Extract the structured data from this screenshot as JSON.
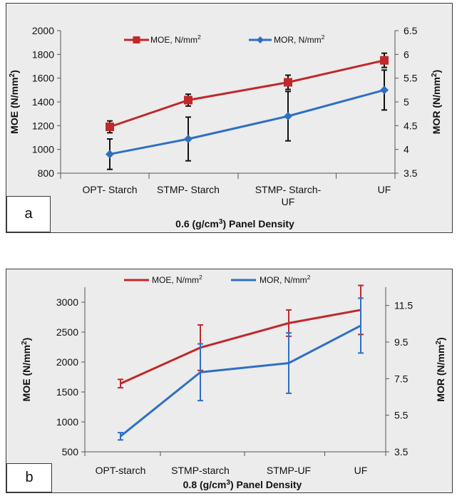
{
  "panels": {
    "a": {
      "label": "a"
    },
    "b": {
      "label": "b"
    }
  },
  "chart_data": [
    {
      "type": "line",
      "categories": [
        "OPT- Starch",
        "STMP- Starch",
        "STMP- Starch-UF",
        "UF"
      ],
      "category_lines": [
        [
          "OPT- Starch"
        ],
        [
          "STMP- Starch"
        ],
        [
          "STMP- Starch-",
          "UF"
        ],
        [
          "UF"
        ]
      ],
      "ylabel": "MOE (N/mm2)",
      "ylabel_parts": {
        "main": "MOE (N/mm",
        "sup": "2",
        "close": ")"
      },
      "y2label": "MOR (N/mm2)",
      "y2label_parts": {
        "main": "MOR (N/mm",
        "sup": "2",
        "close": ")"
      },
      "xlabel": "0.6 (g/cm3)  Panel Density",
      "xlabel_parts": {
        "pre": "0.6 (g/cm",
        "sup": "3",
        "post": ")  Panel Density"
      },
      "ylim": [
        800,
        2000
      ],
      "yticks": [
        800,
        1000,
        1200,
        1400,
        1600,
        1800,
        2000
      ],
      "y2lim": [
        3.5,
        6.5
      ],
      "y2ticks": [
        "3.5",
        "4",
        "4.5",
        "5",
        "5.5",
        "6",
        "6.5"
      ],
      "grid": false,
      "legend": "top",
      "series": [
        {
          "name": "MOE, N/mm2",
          "name_parts": {
            "main": "MOE, N/mm",
            "sup": "2"
          },
          "axis": "left",
          "color": "#c0282a",
          "marker": "square",
          "values": [
            1190,
            1415,
            1565,
            1750
          ],
          "err": [
            50,
            50,
            60,
            60
          ]
        },
        {
          "name": "MOR, N/mm2",
          "name_parts": {
            "main": "MOR, N/mm",
            "sup": "2"
          },
          "axis": "right",
          "color": "#2e6fc4",
          "marker": "diamond",
          "values": [
            3.9,
            4.22,
            4.7,
            5.25
          ],
          "err": [
            0.32,
            0.46,
            0.52,
            0.42
          ]
        }
      ]
    },
    {
      "type": "line",
      "categories": [
        "OPT-starch",
        "STMP-starch",
        "STMP-UF",
        "UF"
      ],
      "category_lines": [
        [
          "OPT-starch"
        ],
        [
          "STMP-starch"
        ],
        [
          "STMP-UF"
        ],
        [
          "UF"
        ]
      ],
      "ylabel": "MOE (N/mm2)",
      "ylabel_parts": {
        "main": "MOE (N/mm",
        "sup": "2",
        "close": ")"
      },
      "y2label": "MOR (N/mm2)",
      "y2label_parts": {
        "main": "MOR (N/mm",
        "sup": "2",
        "close": ")"
      },
      "xlabel": "0.8 (g/cm3) Panel Density",
      "xlabel_parts": {
        "pre": "0.8 (g/cm",
        "sup": "3",
        "post": ") Panel Density"
      },
      "ylim": [
        500,
        3250
      ],
      "yticks": [
        500,
        1000,
        1500,
        2000,
        2500,
        3000
      ],
      "y2lim": [
        3.5,
        12.5
      ],
      "y2ticks": [
        "3.5",
        "5.5",
        "7.5",
        "9.5",
        "11.5"
      ],
      "grid": false,
      "legend": "top",
      "series": [
        {
          "name": "MOE, N/mm2",
          "name_parts": {
            "main": "MOE, N/mm",
            "sup": "2"
          },
          "axis": "left",
          "color": "#c0282a",
          "marker": "none",
          "values": [
            1640,
            2240,
            2650,
            2870
          ],
          "err": [
            70,
            380,
            220,
            410
          ]
        },
        {
          "name": "MOR, N/mm2",
          "name_parts": {
            "main": "MOR, N/mm",
            "sup": "2"
          },
          "axis": "right",
          "color": "#2e6fc4",
          "marker": "none",
          "values": [
            4.35,
            7.85,
            8.35,
            10.4
          ],
          "err": [
            0.2,
            1.55,
            1.65,
            1.5
          ]
        }
      ]
    }
  ]
}
